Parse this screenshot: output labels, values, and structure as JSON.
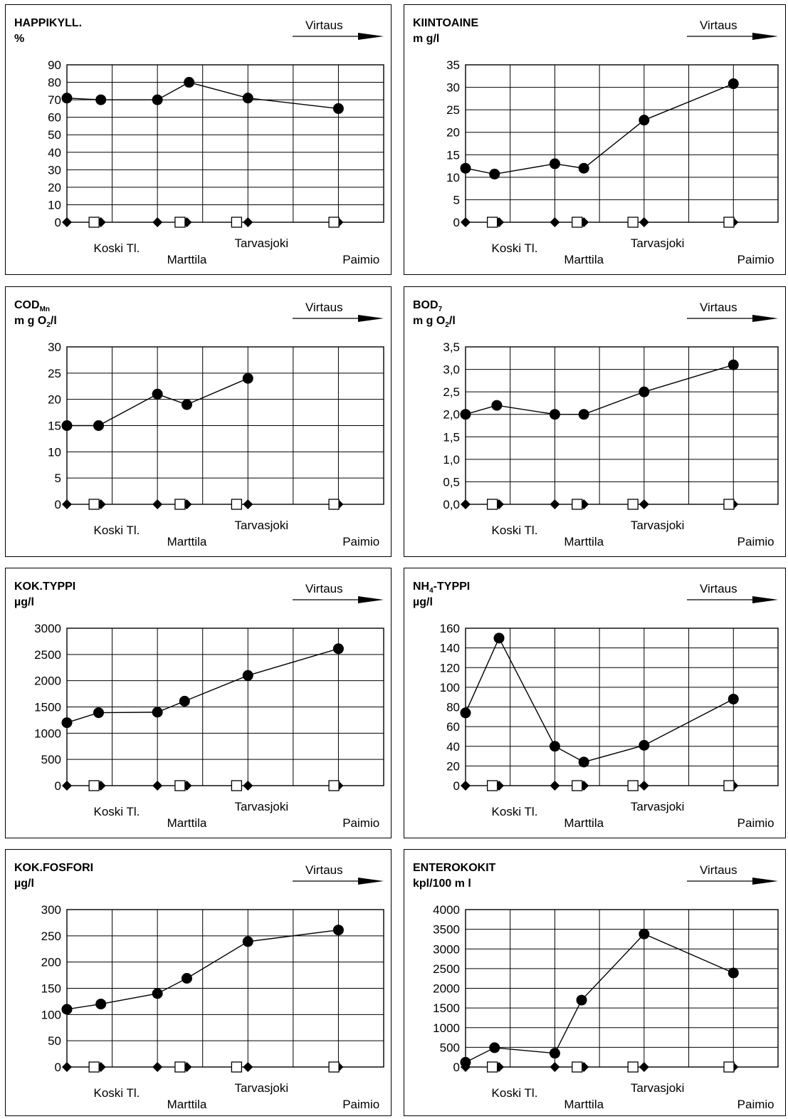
{
  "flow_label": "Virtaus",
  "sites": {
    "koski": "Koski Tl.",
    "marttila": "Marttila",
    "tarvasjoki": "Tarvasjoki",
    "paimio": "Paimio"
  },
  "chart_data": [
    {
      "type": "line",
      "title": "HAPPIKYLL.",
      "unit": "%",
      "ylim": [
        0,
        90
      ],
      "yticks": [
        "0",
        "10",
        "20",
        "30",
        "40",
        "50",
        "60",
        "70",
        "80",
        "90"
      ],
      "x": [
        0,
        0.75,
        2,
        2.7,
        4,
        6
      ],
      "y": [
        71,
        70,
        70,
        80,
        71,
        65
      ]
    },
    {
      "type": "line",
      "title": "KIINTOAINE",
      "unit": "m g/l",
      "ylim": [
        0,
        35
      ],
      "yticks": [
        "0",
        "5",
        "10",
        "15",
        "20",
        "25",
        "30",
        "35"
      ],
      "x": [
        0,
        0.65,
        2,
        2.65,
        4,
        6
      ],
      "y": [
        12,
        10.7,
        13,
        12,
        22.7,
        30.8
      ]
    },
    {
      "type": "line",
      "title": "COD",
      "title_sub": "Mn",
      "unit": "m g O",
      "unit_sub": "2",
      "unit_tail": "/l",
      "ylim": [
        0,
        30
      ],
      "yticks": [
        "0",
        "5",
        "10",
        "15",
        "20",
        "25",
        "30"
      ],
      "x": [
        0,
        0.7,
        2,
        2.65,
        4,
        6
      ],
      "y": [
        15,
        15,
        21,
        19,
        24,
        null
      ]
    },
    {
      "type": "line",
      "title": "BOD",
      "title_sub": "7",
      "unit": "m g O",
      "unit_sub": "2",
      "unit_tail": "/l",
      "ylim": [
        0,
        3.5
      ],
      "yticks": [
        "0,0",
        "0,5",
        "1,0",
        "1,5",
        "2,0",
        "2,5",
        "3,0",
        "3,5"
      ],
      "x": [
        0,
        0.7,
        2,
        2.65,
        4,
        6
      ],
      "y": [
        2.0,
        2.2,
        2.0,
        2.0,
        2.5,
        3.1
      ]
    },
    {
      "type": "line",
      "title": "KOK.TYPPI",
      "unit": "µg/l",
      "ylim": [
        0,
        3000
      ],
      "yticks": [
        "0",
        "500",
        "1000",
        "1500",
        "2000",
        "2500",
        "3000"
      ],
      "x": [
        0,
        0.7,
        2,
        2.6,
        4,
        6
      ],
      "y": [
        1200,
        1390,
        1400,
        1610,
        2100,
        2610
      ]
    },
    {
      "type": "line",
      "title": "NH",
      "title_sub": "4",
      "title_tail": "-TYPPI",
      "unit": "µg/l",
      "ylim": [
        0,
        160
      ],
      "yticks": [
        "0",
        "20",
        "40",
        "60",
        "80",
        "100",
        "120",
        "140",
        "160"
      ],
      "x": [
        0,
        0.75,
        2,
        2.65,
        4,
        6
      ],
      "y": [
        74,
        150,
        40,
        24,
        41,
        88
      ]
    },
    {
      "type": "line",
      "title": "KOK.FOSFORI",
      "unit": "µg/l",
      "ylim": [
        0,
        300
      ],
      "yticks": [
        "0",
        "50",
        "100",
        "150",
        "200",
        "250",
        "300"
      ],
      "x": [
        0,
        0.75,
        2,
        2.65,
        4,
        6
      ],
      "y": [
        110,
        120,
        140,
        169,
        239,
        261
      ]
    },
    {
      "type": "line",
      "title": "ENTEROKOKIT",
      "unit": "kpl/100 m l",
      "ylim": [
        0,
        4000
      ],
      "yticks": [
        "0",
        "500",
        "1000",
        "1500",
        "2000",
        "2500",
        "3000",
        "3500",
        "4000"
      ],
      "x": [
        0,
        0.65,
        2,
        2.6,
        4,
        6
      ],
      "y": [
        120,
        490,
        350,
        1700,
        3380,
        2390
      ]
    }
  ]
}
